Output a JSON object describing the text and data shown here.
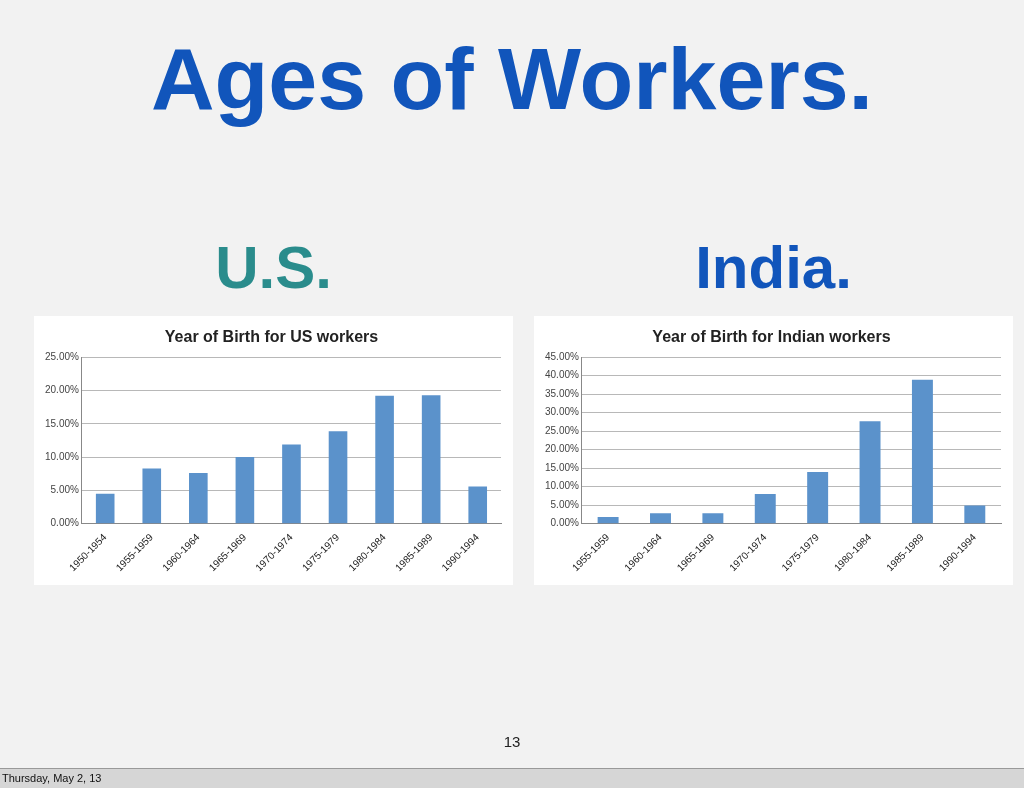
{
  "chart_data": [
    {
      "type": "other",
      "title": "Ages of Workers.",
      "annotations": [
        "13",
        "Thursday, May 2, 13"
      ]
    },
    {
      "type": "bar",
      "subtitle": "U.S.",
      "title": "Year of Birth for US workers",
      "categories": [
        "1950-1954",
        "1955-1959",
        "1960-1964",
        "1965-1969",
        "1970-1974",
        "1975-1979",
        "1980-1984",
        "1985-1989",
        "1990-1994"
      ],
      "values": [
        4.5,
        8.3,
        7.6,
        10.0,
        11.9,
        13.9,
        19.2,
        19.3,
        5.6
      ],
      "color": "#5b92cb",
      "ylim": [
        0,
        25
      ],
      "yticks": [
        {
          "value": 0,
          "label": "0.00%"
        },
        {
          "value": 5,
          "label": "5.00%"
        },
        {
          "value": 10,
          "label": "10.00%"
        },
        {
          "value": 15,
          "label": "15.00%"
        },
        {
          "value": 20,
          "label": "20.00%"
        },
        {
          "value": 25,
          "label": "25.00%"
        }
      ],
      "grid": "y",
      "legend": false
    },
    {
      "type": "bar",
      "subtitle": "India.",
      "title": "Year of Birth for Indian workers",
      "categories": [
        "1955-1959",
        "1960-1964",
        "1965-1969",
        "1970-1974",
        "1975-1979",
        "1980-1984",
        "1985-1989",
        "1990-1994"
      ],
      "values": [
        1.8,
        2.8,
        2.8,
        8.0,
        14.0,
        27.7,
        38.9,
        4.9
      ],
      "color": "#5b92cb",
      "ylim": [
        0,
        45
      ],
      "yticks": [
        {
          "value": 0,
          "label": "0.00%"
        },
        {
          "value": 5,
          "label": "5.00%"
        },
        {
          "value": 10,
          "label": "10.00%"
        },
        {
          "value": 15,
          "label": "15.00%"
        },
        {
          "value": 20,
          "label": "20.00%"
        },
        {
          "value": 25,
          "label": "25.00%"
        },
        {
          "value": 30,
          "label": "30.00%"
        },
        {
          "value": 35,
          "label": "35.00%"
        },
        {
          "value": 40,
          "label": "40.00%"
        },
        {
          "value": 45,
          "label": "45.00%"
        }
      ],
      "grid": "y",
      "legend": false
    }
  ]
}
